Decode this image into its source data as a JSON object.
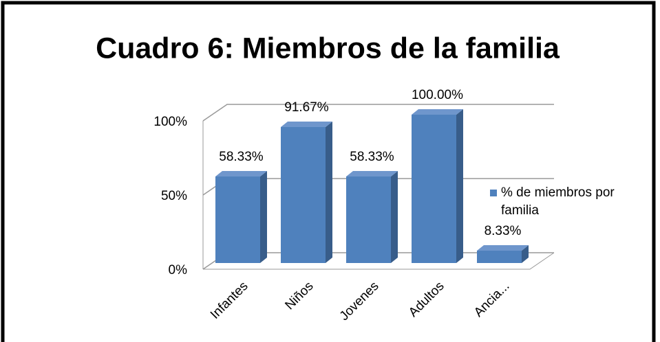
{
  "chart_data": {
    "type": "bar3d",
    "title": "Cuadro 6: Miembros de la familia",
    "categories": [
      "Infantes",
      "Niños",
      "Jovenes",
      "Adultos",
      "Ancia..."
    ],
    "series": [
      {
        "name": "% de miembros por familia",
        "color": "#4f81bd",
        "values": [
          58.33,
          91.67,
          58.33,
          100,
          8.33
        ],
        "value_labels": [
          "58.33%",
          "91.67%",
          "58.33%",
          "100.00%",
          "8.33%"
        ]
      }
    ],
    "ylim": [
      0,
      100
    ],
    "yticks": [
      {
        "value": 0,
        "label": "0%"
      },
      {
        "value": 50,
        "label": "50%"
      },
      {
        "value": 100,
        "label": "100%"
      }
    ],
    "grid": true,
    "legend": "right"
  }
}
